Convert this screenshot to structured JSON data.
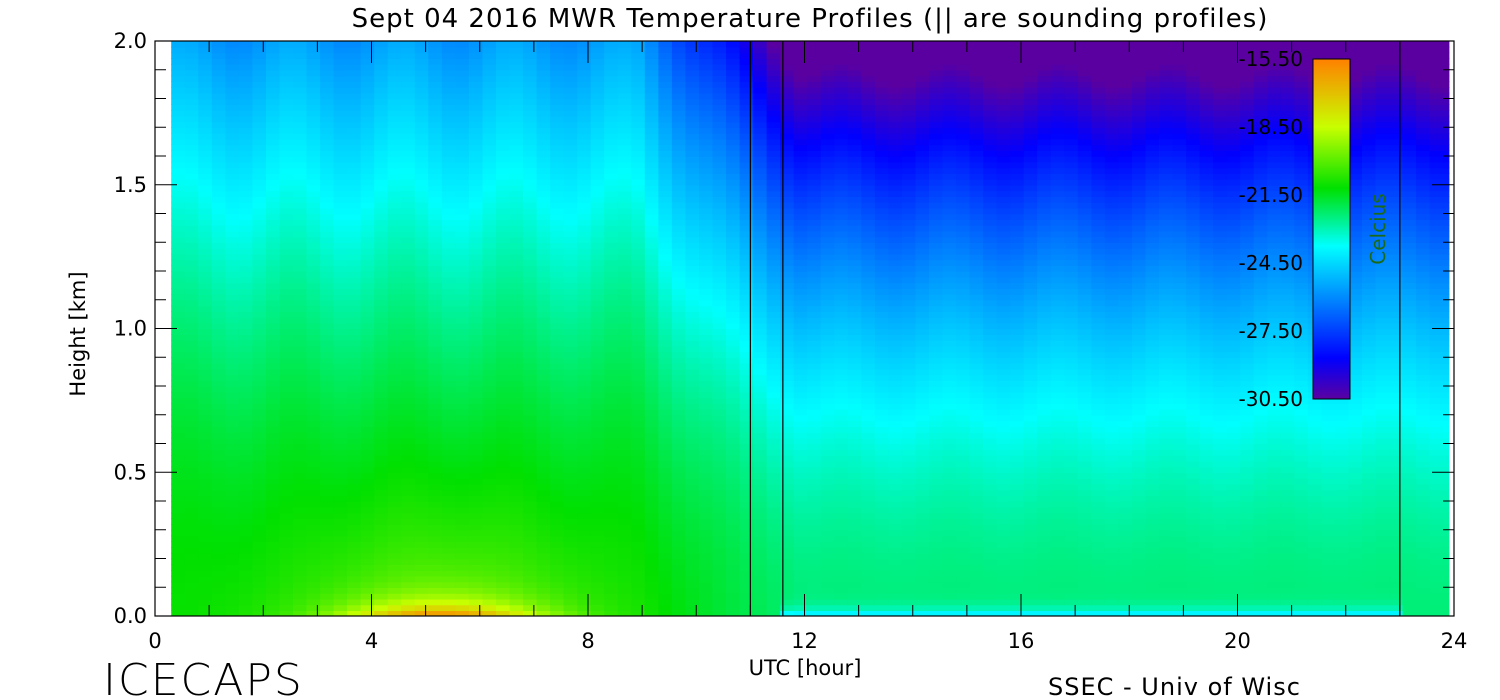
{
  "chart_data": {
    "type": "heatmap",
    "title": "Sept 04 2016 MWR Temperature Profiles (|| are sounding profiles)",
    "xlabel": "UTC [hour]",
    "ylabel": "Height [km]",
    "xlim": [
      0,
      24
    ],
    "ylim": [
      0,
      2
    ],
    "x_ticks": [
      "0",
      "4",
      "8",
      "12",
      "16",
      "20",
      "24"
    ],
    "y_ticks": [
      "0.0",
      "0.5",
      "1.0",
      "1.5",
      "2.0"
    ],
    "colorbar": {
      "label": "Celcius",
      "ticks": [
        "-15.50",
        "-18.50",
        "-21.50",
        "-24.50",
        "-27.50",
        "-30.50"
      ],
      "range": [
        -30.5,
        -15.5
      ],
      "colors": [
        "#5a00a0",
        "#0000ff",
        "#00ffff",
        "#00e000",
        "#c8ff00",
        "#ff8000"
      ]
    },
    "data_extent_hours": [
      0.3,
      23.9
    ],
    "data_gap_hours": [
      11.0,
      11.6
    ],
    "sounding_times_hours": [
      11.0,
      11.6,
      23.0
    ],
    "grid": false
  },
  "footer": {
    "left": "ICECAPS",
    "right": "SSEC - Univ of Wisc"
  }
}
